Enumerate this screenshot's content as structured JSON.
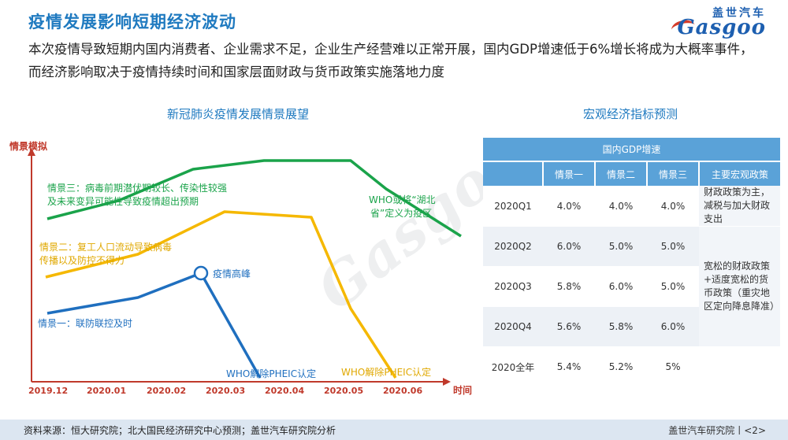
{
  "header": {
    "title": "疫情发展影响短期经济波动",
    "logo_cn": "盖世汽车",
    "logo_en": "Gasgoo"
  },
  "headline": "本次疫情导致短期内国内消费者、企业需求不足，企业生产经营难以正常开展，国内GDP增速低于6%增长将成为大概率事件，而经济影响取决于疫情持续时间和国家层面财政与货币政策实施落地力度",
  "diagram": {
    "title": "新冠肺炎疫情发展情景展望",
    "y_axis_label": "情景模拟",
    "x_axis_label": "时间",
    "x_ticks": [
      "2019.12",
      "2020.01",
      "2020.02",
      "2020.03",
      "2020.04",
      "2020.05",
      "2020.06"
    ],
    "scenario1_label": "情景一：联防联控及时",
    "scenario2_label_line1": "情景二：复工人口流动导致病毒",
    "scenario2_label_line2": "传播以及防控不得力",
    "scenario3_label_line1": "情景三：病毒前期潜伏期较长、传染性较强",
    "scenario3_label_line2": "及未来变异可能性导致疫情超出预期",
    "peak_label": "疫情高峰",
    "who_pheic1": "WHO解除PHEIC认定",
    "who_pheic2": "WHO解除PHEIC认定",
    "who_hubei_line1": "WHO或将“湖北",
    "who_hubei_line2": "省”定义为疫区",
    "colors": {
      "scenario1": "#1f6fbf",
      "scenario2": "#f5b800",
      "scenario3": "#1aa34a",
      "axis": "#c0392b"
    }
  },
  "table": {
    "title": "宏观经济指标预测",
    "group_header": "国内GDP增速",
    "columns": [
      "",
      "情景一",
      "情景二",
      "情景三",
      "主要宏观政策"
    ],
    "rows": [
      {
        "period": "2020Q1",
        "s1": "4.0%",
        "s2": "4.0%",
        "s3": "4.0%"
      },
      {
        "period": "2020Q2",
        "s1": "6.0%",
        "s2": "5.0%",
        "s3": "5.0%"
      },
      {
        "period": "2020Q3",
        "s1": "5.8%",
        "s2": "6.0%",
        "s3": "5.0%"
      },
      {
        "period": "2020Q4",
        "s1": "5.6%",
        "s2": "5.8%",
        "s3": "6.0%"
      },
      {
        "period": "2020全年",
        "s1": "5.4%",
        "s2": "5.2%",
        "s3": "5%"
      }
    ],
    "policy_q1": "财政政策为主，减税与加大财政支出",
    "policy_rest": "宽松的财政政策+适度宽松的货币政策（重灾地区定向降息降准）"
  },
  "footer": {
    "source": "资料来源：恒大研究院；北大国民经济研究中心预测；盖世汽车研究院分析",
    "org": "盖世汽车研究院丨<2>"
  }
}
